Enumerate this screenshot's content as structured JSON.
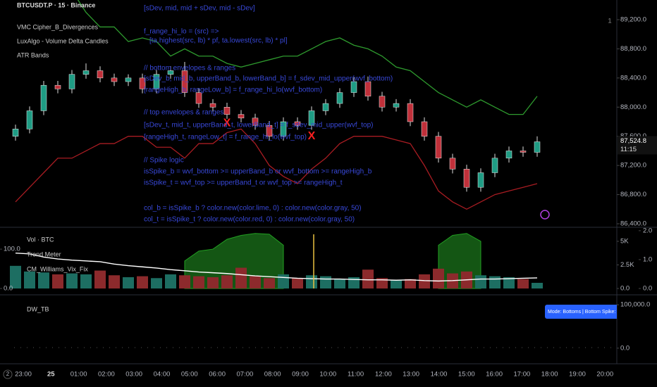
{
  "chart_data": [
    {
      "type": "candlestick",
      "title": "BTCUSDT.P · 15 · Binance",
      "indicators": [
        "VMC Cipher_B_Divergences",
        "LuxAlgo - Volume Delta Candles",
        "ATR Bands"
      ],
      "annotations": [
        "[sDev, mid, mid + sDev, mid - sDev]",
        "f_range_hi_lo = (src) =>",
        "[ta.highest(src, lb) * pf, ta.lowest(src, lb) * pl]",
        "// bottom envelopes & ranges",
        "[sDev_b, mid_b, upperBand_b, lowerBand_b] = f_sdev_mid_upper(wvf_bottom)",
        "[rangeHigh_b, rangeLow_b] = f_range_hi_lo(wvf_bottom)",
        "// top envelopes & ranges",
        "[sDev_t, mid_t, upperBand_t, lowerBand_t] = f_sdev_mid_upper(wvf_top)",
        "[rangeHigh_t, rangeLow_t] = f_range_hi_lo(wvf_top)",
        "// Spike logic",
        "isSpike_b = wvf_bottom >= upperBand_b or wvf_bottom >= rangeHigh_b",
        "isSpike_t = wvf_top   >= upperBand_t or wvf_top   >= rangeHigh_t",
        "col_b = isSpike_b ? color.new(color.lime, 0) : color.new(color.gray, 50)",
        "col_t = isSpike_t ? color.new(color.red, 0) : color.new(color.gray, 50)"
      ],
      "open": [
        87600,
        87700,
        87950,
        88300,
        88250,
        88450,
        88500,
        88400,
        88350,
        88400,
        88250,
        88450,
        88500,
        88200,
        88050,
        88000,
        87900,
        87850,
        87750,
        87600,
        87800,
        87750,
        87950,
        88050,
        88200,
        88350,
        88150,
        88000,
        88050,
        87800,
        87600,
        87300,
        87150,
        86900,
        87100,
        87300,
        87400,
        87380
      ],
      "high": [
        87760,
        88010,
        88360,
        88360,
        88510,
        88600,
        88560,
        88460,
        88450,
        88460,
        88510,
        88560,
        88620,
        88260,
        88110,
        88060,
        87960,
        87910,
        87810,
        87860,
        87860,
        88010,
        88110,
        88260,
        88410,
        88420,
        88210,
        88110,
        88110,
        87860,
        87660,
        87360,
        87210,
        87160,
        87360,
        87460,
        87460,
        87600
      ],
      "low": [
        87540,
        87640,
        87890,
        88190,
        88190,
        88390,
        88340,
        88290,
        88290,
        88190,
        88190,
        88390,
        88140,
        87990,
        87940,
        87840,
        87790,
        87690,
        87540,
        87540,
        87690,
        87690,
        87890,
        87990,
        88140,
        88090,
        87940,
        87940,
        87740,
        87540,
        87240,
        87090,
        86840,
        86840,
        87040,
        87240,
        87320,
        87320
      ],
      "close": [
        87700,
        87950,
        88300,
        88250,
        88450,
        88500,
        88400,
        88350,
        88400,
        88250,
        88450,
        88500,
        88200,
        88050,
        88000,
        87900,
        87850,
        87750,
        87600,
        87800,
        87750,
        87950,
        88050,
        88200,
        88350,
        88150,
        88000,
        88050,
        87800,
        87600,
        87300,
        87150,
        86900,
        87100,
        87300,
        87400,
        87380,
        87524.8
      ],
      "up_color": "#1f9c84",
      "down_color": "#c0303a",
      "series": [
        {
          "name": "ATR Bands upper",
          "color": "#2e9a2e",
          "values": [
            89600,
            89600,
            89600,
            89600,
            89600,
            89300,
            89100,
            89100,
            88900,
            88950,
            88900,
            88700,
            88800,
            88700,
            88700,
            88600,
            88550,
            88600,
            88650,
            88700,
            88700,
            88800,
            88900,
            88950,
            88850,
            88800,
            88700,
            88550,
            88500,
            88350,
            88200,
            88100,
            88000,
            88100,
            88000,
            87900,
            87900,
            88150
          ]
        },
        {
          "name": "ATR Bands lower",
          "color": "#a81c22",
          "values": [
            86700,
            86900,
            87100,
            87300,
            87300,
            87400,
            87500,
            87500,
            87600,
            87600,
            87450,
            87450,
            87300,
            87500,
            87500,
            87650,
            87700,
            87500,
            87200,
            87050,
            86950,
            87150,
            87300,
            87500,
            87600,
            87600,
            87600,
            87550,
            87500,
            87200,
            86850,
            86700,
            86600,
            86700,
            86800,
            86850,
            86900,
            86950
          ]
        }
      ],
      "markers": [
        {
          "at": 15,
          "label": "X",
          "value": 87780
        },
        {
          "at": 21,
          "label": "X",
          "value": 87600
        }
      ],
      "last_price": {
        "value": 87524.8,
        "label": "87,524.8"
      },
      "countdown": "11:15",
      "ylim": [
        86400,
        89470
      ],
      "yticks": [
        {
          "value": 89200,
          "label": "89,200.0"
        },
        {
          "value": 88800,
          "label": "88,800.0"
        },
        {
          "value": 88400,
          "label": "88,400.0"
        },
        {
          "value": 88000,
          "label": "88,000.0"
        },
        {
          "value": 87600,
          "label": "87,600.0"
        },
        {
          "value": 87200,
          "label": "87,200.0"
        },
        {
          "value": 86800,
          "label": "86,800.0"
        },
        {
          "value": 86400,
          "label": "86,400.0"
        }
      ]
    },
    {
      "type": "bar",
      "series": [
        {
          "name": "Vol · BTC",
          "values": [
            2400,
            1800,
            1700,
            1500,
            1600,
            1500,
            1900,
            1400,
            1200,
            1300,
            1100,
            1500,
            1400,
            1300,
            1200,
            1400,
            2200,
            1300,
            1100,
            1500,
            1100,
            1400,
            1300,
            1000,
            1200,
            2000,
            1100,
            900,
            1000,
            1500,
            2100,
            1600,
            1800,
            1400,
            1300,
            1200,
            1000,
            600
          ]
        },
        {
          "name": "Trend Meter",
          "color": "#1c7a1c",
          "axis": "left",
          "values": [
            null,
            null,
            null,
            null,
            null,
            null,
            null,
            null,
            null,
            null,
            null,
            null,
            70,
            95,
            100,
            125,
            135,
            140,
            138,
            110,
            null,
            null,
            null,
            null,
            null,
            null,
            null,
            null,
            null,
            null,
            110,
            135,
            140,
            120,
            null,
            null,
            null,
            null
          ]
        },
        {
          "name": "CM_Williams_Vix_Fix",
          "color": "#ffffff",
          "axis": "left",
          "values": [
            90,
            88,
            80,
            75,
            72,
            70,
            68,
            62,
            58,
            55,
            52,
            48,
            45,
            42,
            40,
            38,
            35,
            32,
            30,
            28,
            26,
            25,
            24,
            24,
            23,
            22,
            22,
            21,
            22,
            20,
            19,
            20,
            22,
            24,
            24,
            25,
            26,
            27
          ]
        }
      ],
      "up_color": "#1d6e62",
      "down_color": "#8c2a2c",
      "ylim": [
        0,
        6340
      ],
      "yticks": [
        {
          "value": 0,
          "label": "0.0"
        },
        {
          "value": 2500,
          "label": "2.5K"
        },
        {
          "value": 5000,
          "label": "5K"
        }
      ],
      "y2lim": [
        0,
        2.07
      ],
      "y2ticks": [
        {
          "value": 0,
          "label": "0.0"
        },
        {
          "value": 1,
          "label": "1.0"
        },
        {
          "value": 2,
          "label": "2.0"
        }
      ],
      "left_ylim": [
        0,
        152
      ],
      "left_yticks": [
        {
          "value": 0,
          "label": "0.0"
        },
        {
          "value": 100,
          "label": "100.0"
        }
      ]
    },
    {
      "type": "line",
      "title": "DW_TB",
      "tooltip": "Mode: Bottoms  |  Bottom Spike: false  |  Top S",
      "ylim": [
        -34400,
        121300
      ],
      "yticks": [
        {
          "value": 0,
          "label": "0.0"
        },
        {
          "value": 100000,
          "label": "100,000.0"
        }
      ]
    }
  ],
  "ui": {
    "corner_badge": "2",
    "pane_badge": "1",
    "time_axis": [
      "23:00",
      "25",
      "01:00",
      "02:00",
      "03:00",
      "04:00",
      "05:00",
      "06:00",
      "07:00",
      "08:00",
      "09:00",
      "10:00",
      "11:00",
      "12:00",
      "13:00",
      "14:00",
      "15:00",
      "16:00",
      "17:00",
      "18:00",
      "19:00",
      "20:00"
    ]
  }
}
